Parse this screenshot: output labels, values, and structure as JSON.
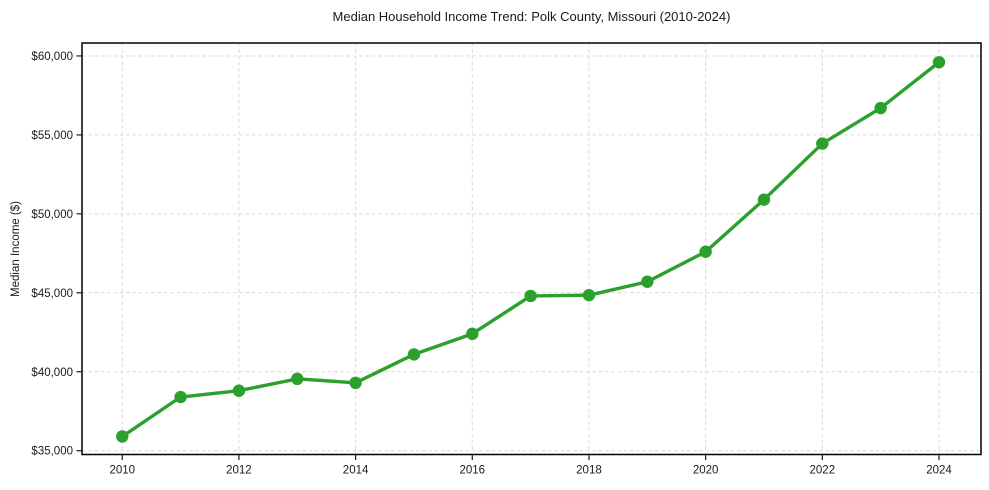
{
  "chart_data": {
    "type": "line",
    "title": "Median Household Income Trend: Polk County, Missouri (2010-2024)",
    "xlabel": "",
    "ylabel": "Median Income ($)",
    "x": [
      2010,
      2011,
      2012,
      2013,
      2014,
      2015,
      2016,
      2017,
      2018,
      2019,
      2020,
      2021,
      2022,
      2023,
      2024
    ],
    "values": [
      35900,
      38400,
      38800,
      39550,
      39300,
      41100,
      42400,
      44800,
      44850,
      45700,
      47600,
      50900,
      54450,
      56700,
      59600
    ],
    "x_ticks": [
      2010,
      2012,
      2014,
      2016,
      2018,
      2020,
      2022,
      2024
    ],
    "x_tick_labels": [
      "2010",
      "2012",
      "2014",
      "2016",
      "2018",
      "2020",
      "2022",
      "2024"
    ],
    "y_ticks": [
      35000,
      40000,
      45000,
      50000,
      55000,
      60000
    ],
    "y_tick_labels": [
      "$35,000",
      "$40,000",
      "$45,000",
      "$50,000",
      "$55,000",
      "$60,000"
    ],
    "xlim": [
      2009.31,
      2024.72
    ],
    "ylim": [
      34760,
      60820
    ],
    "grid": true,
    "legend_position": "none",
    "marker": "circle",
    "colors": {
      "line": "#2ca02c",
      "marker": "#2ca02c",
      "grid": "#d9d9d9",
      "text": "#1a1a1a",
      "frame": "#000000",
      "background": "#ffffff"
    }
  }
}
